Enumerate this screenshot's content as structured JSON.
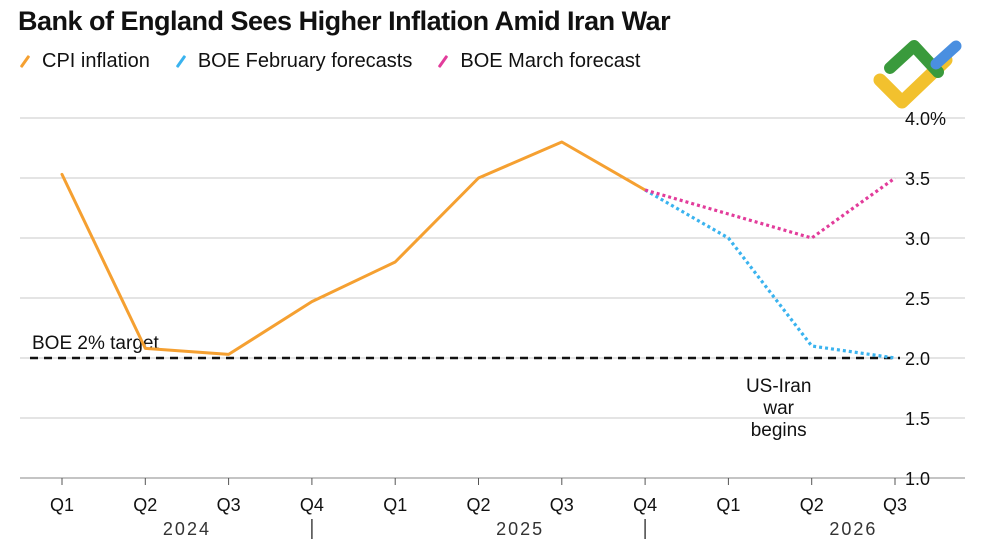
{
  "chart_data": {
    "type": "line",
    "title": "Bank of England Sees Higher Inflation Amid Iran War",
    "categories": [
      "Q1",
      "Q2",
      "Q3",
      "Q4",
      "Q1",
      "Q2",
      "Q3",
      "Q4",
      "Q1",
      "Q2",
      "Q3"
    ],
    "years": [
      "2024",
      "2025",
      "2026"
    ],
    "series": [
      {
        "name": "CPI inflation",
        "color": "#f5a031",
        "style": "solid",
        "points": [
          [
            0,
            3.53
          ],
          [
            1,
            2.08
          ],
          [
            2,
            2.03
          ],
          [
            3,
            2.47
          ],
          [
            4,
            2.8
          ],
          [
            5,
            3.5
          ],
          [
            6,
            3.8
          ],
          [
            7,
            3.4
          ]
        ]
      },
      {
        "name": "BOE February forecasts",
        "color": "#3ab3ef",
        "style": "dotted",
        "points": [
          [
            7,
            3.4
          ],
          [
            8,
            3.0
          ],
          [
            9,
            2.1
          ],
          [
            10,
            2.0
          ]
        ]
      },
      {
        "name": "BOE March forecast",
        "color": "#e23c9b",
        "style": "dotted",
        "points": [
          [
            7,
            3.4
          ],
          [
            8,
            3.2
          ],
          [
            9,
            3.0
          ],
          [
            10,
            3.5
          ]
        ]
      }
    ],
    "yticks": [
      "1.0",
      "1.5",
      "2.0",
      "2.5",
      "3.0",
      "3.5",
      "4.0%"
    ],
    "ylim": [
      1.0,
      4.0
    ],
    "grid": true,
    "reference_line": {
      "value": 2.0,
      "label": "BOE 2% target"
    },
    "annotation": {
      "at_category_index": 9,
      "lines": [
        "US-Iran",
        "war",
        "begins"
      ]
    }
  },
  "logo": {
    "name": "brand-logo",
    "colors": [
      "#3a9a3c",
      "#4a8fe0",
      "#f2c12e"
    ]
  }
}
